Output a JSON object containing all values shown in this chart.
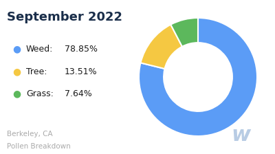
{
  "title": "September 2022",
  "title_color": "#1a2e4a",
  "title_fontsize": 13,
  "title_fontweight": "bold",
  "labels": [
    "Weed",
    "Tree",
    "Grass"
  ],
  "values": [
    78.85,
    13.51,
    7.64
  ],
  "colors": [
    "#5b9cf6",
    "#f5c842",
    "#5cb85c"
  ],
  "legend_entries": [
    {
      "dot": "Weed:",
      "pct": "78.85%"
    },
    {
      "dot": "Tree:",
      "pct": "13.51%"
    },
    {
      "dot": "Grass:",
      "pct": "7.64%"
    }
  ],
  "donut_width": 0.42,
  "background_color": "#ffffff",
  "footer_line1": "Berkeley, CA",
  "footer_line2": "Pollen Breakdown",
  "footer_color": "#aaaaaa",
  "footer_fontsize": 7.5,
  "watermark_text": "w",
  "watermark_color": "#b8cce4",
  "watermark_fontsize": 22,
  "legend_fontsize": 9,
  "legend_text_color": "#1a1a1a",
  "dot_fontsize": 10
}
